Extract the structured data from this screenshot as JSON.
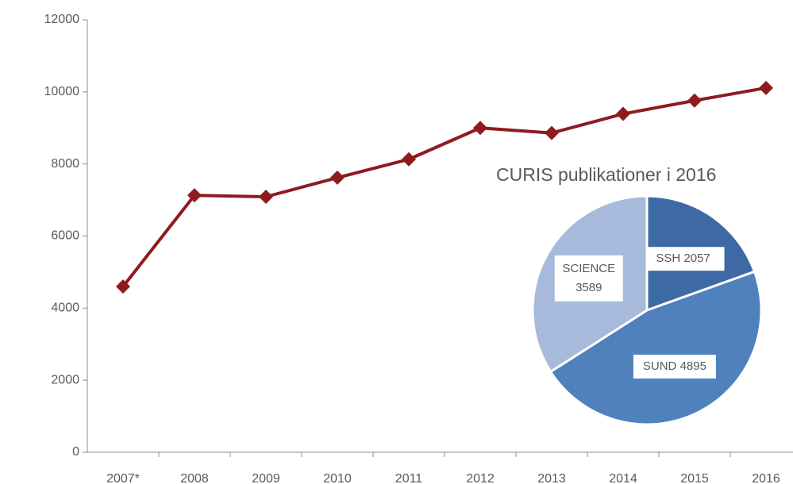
{
  "chart_data": [
    {
      "type": "line",
      "categories": [
        "2007*",
        "2008",
        "2009",
        "2010",
        "2011",
        "2012",
        "2013",
        "2014",
        "2015",
        "2016"
      ],
      "series": [
        {
          "color": "#8e1b1f",
          "values": [
            4600,
            7130,
            7090,
            7620,
            8130,
            9000,
            8860,
            9390,
            9760,
            10110
          ]
        }
      ],
      "ylim": [
        0,
        12000
      ],
      "yticks": [
        0,
        2000,
        4000,
        6000,
        8000,
        10000,
        12000
      ],
      "grid": false
    },
    {
      "type": "pie",
      "title": "CURIS publikationer i 2016",
      "categories": [
        "SSH",
        "SUND",
        "SCIENCE"
      ],
      "values": [
        2057,
        4895,
        3589
      ],
      "colors": [
        "#3d6aa4",
        "#4f81bd",
        "#a8badb"
      ]
    }
  ]
}
